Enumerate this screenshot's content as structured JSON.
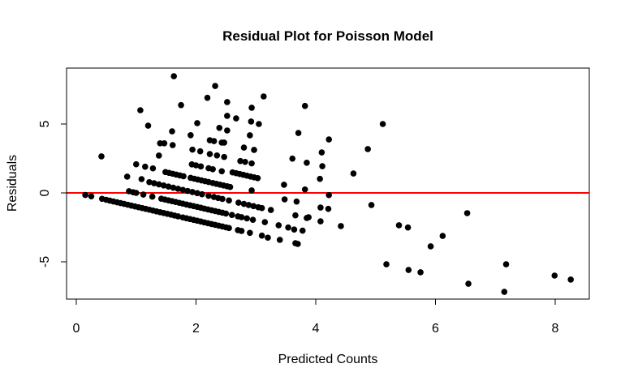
{
  "chart_data": {
    "type": "scatter",
    "title": "Residual Plot for Poisson Model",
    "xlabel": "Predicted Counts",
    "ylabel": "Residuals",
    "xlim": [
      -0.2,
      8.5
    ],
    "ylim": [
      -7.6,
      9.0
    ],
    "xticks": [
      "0",
      "2",
      "4",
      "6",
      "8"
    ],
    "yticks": [
      "-5",
      "0",
      "5"
    ],
    "grid": false,
    "point_color": "#000000",
    "reference_line": {
      "y": 0,
      "color": "#ff0000"
    },
    "points": [
      [
        0.15,
        -0.15
      ],
      [
        0.25,
        -0.25
      ],
      [
        0.43,
        -0.43
      ],
      [
        0.5,
        -0.5
      ],
      [
        0.56,
        -0.56
      ],
      [
        0.62,
        -0.62
      ],
      [
        0.68,
        -0.68
      ],
      [
        0.74,
        -0.74
      ],
      [
        0.8,
        -0.8
      ],
      [
        0.86,
        -0.86
      ],
      [
        0.92,
        -0.92
      ],
      [
        0.98,
        -0.98
      ],
      [
        1.04,
        -1.04
      ],
      [
        1.1,
        -1.1
      ],
      [
        1.16,
        -1.16
      ],
      [
        1.22,
        -1.22
      ],
      [
        1.28,
        -1.28
      ],
      [
        1.34,
        -1.34
      ],
      [
        1.4,
        -1.4
      ],
      [
        1.46,
        -1.46
      ],
      [
        1.52,
        -1.52
      ],
      [
        1.58,
        -1.58
      ],
      [
        1.64,
        -1.64
      ],
      [
        1.7,
        -1.7
      ],
      [
        1.78,
        -1.78
      ],
      [
        1.84,
        -1.84
      ],
      [
        1.9,
        -1.9
      ],
      [
        1.96,
        -1.96
      ],
      [
        2.02,
        -2.02
      ],
      [
        2.08,
        -2.08
      ],
      [
        2.14,
        -2.14
      ],
      [
        2.2,
        -2.2
      ],
      [
        2.26,
        -2.26
      ],
      [
        2.32,
        -2.32
      ],
      [
        2.38,
        -2.38
      ],
      [
        2.44,
        -2.44
      ],
      [
        2.5,
        -2.5
      ],
      [
        2.55,
        -2.55
      ],
      [
        2.7,
        -2.7
      ],
      [
        2.76,
        -2.76
      ],
      [
        2.9,
        -2.9
      ],
      [
        3.1,
        -3.1
      ],
      [
        3.2,
        -3.25
      ],
      [
        3.4,
        -3.41
      ],
      [
        3.66,
        -3.65
      ],
      [
        3.7,
        -3.7
      ],
      [
        3.38,
        -2.35
      ],
      [
        3.54,
        -2.51
      ],
      [
        3.64,
        -2.66
      ],
      [
        3.78,
        -2.74
      ],
      [
        0.88,
        0.12
      ],
      [
        0.95,
        0.05
      ],
      [
        1.0,
        0.0
      ],
      [
        1.12,
        -0.12
      ],
      [
        1.27,
        -0.27
      ],
      [
        1.42,
        -0.42
      ],
      [
        1.48,
        -0.48
      ],
      [
        1.54,
        -0.54
      ],
      [
        1.6,
        -0.6
      ],
      [
        1.66,
        -0.66
      ],
      [
        1.72,
        -0.72
      ],
      [
        1.78,
        -0.78
      ],
      [
        1.84,
        -0.84
      ],
      [
        1.9,
        -0.9
      ],
      [
        1.96,
        -0.96
      ],
      [
        2.02,
        -1.02
      ],
      [
        2.08,
        -1.08
      ],
      [
        2.14,
        -1.14
      ],
      [
        2.2,
        -1.2
      ],
      [
        2.26,
        -1.26
      ],
      [
        2.32,
        -1.32
      ],
      [
        2.38,
        -1.38
      ],
      [
        2.44,
        -1.44
      ],
      [
        2.5,
        -1.5
      ],
      [
        2.6,
        -1.6
      ],
      [
        2.7,
        -1.7
      ],
      [
        2.76,
        -1.76
      ],
      [
        2.85,
        -1.85
      ],
      [
        2.95,
        -1.95
      ],
      [
        3.15,
        -2.12
      ],
      [
        3.66,
        -1.63
      ],
      [
        3.68,
        -0.63
      ],
      [
        3.85,
        -1.82
      ],
      [
        3.48,
        -0.47
      ],
      [
        1.22,
        0.78
      ],
      [
        1.3,
        0.7
      ],
      [
        1.38,
        0.62
      ],
      [
        1.46,
        0.54
      ],
      [
        1.54,
        0.46
      ],
      [
        1.62,
        0.38
      ],
      [
        1.7,
        0.3
      ],
      [
        1.78,
        0.22
      ],
      [
        1.86,
        0.14
      ],
      [
        1.94,
        0.06
      ],
      [
        2.02,
        -0.02
      ],
      [
        2.1,
        -0.1
      ],
      [
        2.21,
        -0.21
      ],
      [
        2.3,
        -0.3
      ],
      [
        2.37,
        -0.37
      ],
      [
        2.44,
        -0.44
      ],
      [
        2.55,
        -0.55
      ],
      [
        2.71,
        -0.71
      ],
      [
        2.8,
        -0.8
      ],
      [
        2.88,
        -0.88
      ],
      [
        2.96,
        -0.96
      ],
      [
        3.04,
        -1.04
      ],
      [
        3.1,
        -1.1
      ],
      [
        3.25,
        -1.24
      ],
      [
        1.49,
        1.51
      ],
      [
        1.55,
        1.45
      ],
      [
        1.61,
        1.39
      ],
      [
        1.67,
        1.33
      ],
      [
        1.73,
        1.27
      ],
      [
        1.79,
        1.21
      ],
      [
        1.91,
        1.09
      ],
      [
        1.97,
        1.03
      ],
      [
        2.03,
        0.97
      ],
      [
        2.09,
        0.91
      ],
      [
        2.15,
        0.85
      ],
      [
        2.21,
        0.79
      ],
      [
        2.28,
        0.72
      ],
      [
        2.34,
        0.66
      ],
      [
        2.4,
        0.6
      ],
      [
        2.46,
        0.54
      ],
      [
        2.52,
        0.48
      ],
      [
        2.57,
        0.43
      ],
      [
        2.93,
        0.18
      ],
      [
        0.85,
        1.18
      ],
      [
        1.09,
        1.0
      ],
      [
        1.0,
        2.08
      ],
      [
        1.15,
        1.9
      ],
      [
        1.28,
        1.78
      ],
      [
        0.42,
        2.65
      ],
      [
        2.61,
        1.49
      ],
      [
        2.67,
        1.43
      ],
      [
        2.73,
        1.37
      ],
      [
        2.79,
        1.31
      ],
      [
        2.85,
        1.25
      ],
      [
        2.91,
        1.19
      ],
      [
        2.97,
        1.13
      ],
      [
        3.03,
        1.07
      ],
      [
        1.93,
        2.07
      ],
      [
        2.0,
        2.0
      ],
      [
        2.08,
        1.92
      ],
      [
        2.21,
        1.79
      ],
      [
        2.28,
        1.72
      ],
      [
        2.43,
        1.57
      ],
      [
        3.47,
        0.59
      ],
      [
        3.82,
        0.25
      ],
      [
        4.07,
        1.02
      ],
      [
        1.38,
        2.71
      ],
      [
        1.94,
        3.14
      ],
      [
        2.07,
        3.02
      ],
      [
        2.23,
        2.82
      ],
      [
        2.35,
        2.72
      ],
      [
        2.47,
        2.61
      ],
      [
        2.74,
        2.31
      ],
      [
        2.82,
        2.25
      ],
      [
        2.93,
        2.14
      ],
      [
        3.61,
        2.49
      ],
      [
        3.85,
        2.19
      ],
      [
        1.4,
        3.6
      ],
      [
        1.47,
        3.6
      ],
      [
        1.61,
        3.47
      ],
      [
        2.23,
        3.82
      ],
      [
        2.3,
        3.76
      ],
      [
        2.43,
        3.65
      ],
      [
        2.47,
        3.65
      ],
      [
        2.8,
        3.29
      ],
      [
        2.97,
        3.12
      ],
      [
        1.63,
        8.47
      ],
      [
        2.32,
        7.76
      ],
      [
        2.19,
        6.9
      ],
      [
        3.13,
        7.0
      ],
      [
        2.52,
        6.59
      ],
      [
        1.75,
        6.37
      ],
      [
        1.07,
        6.0
      ],
      [
        2.93,
        6.18
      ],
      [
        3.82,
        6.31
      ],
      [
        2.52,
        5.59
      ],
      [
        2.67,
        5.41
      ],
      [
        1.2,
        4.88
      ],
      [
        2.02,
        5.06
      ],
      [
        2.92,
        5.18
      ],
      [
        3.05,
        5.0
      ],
      [
        1.6,
        4.47
      ],
      [
        2.39,
        4.72
      ],
      [
        2.52,
        4.53
      ],
      [
        1.91,
        4.19
      ],
      [
        2.9,
        4.18
      ],
      [
        3.71,
        4.35
      ],
      [
        5.12,
        5.0
      ],
      [
        4.22,
        3.88
      ],
      [
        4.1,
        2.94
      ],
      [
        4.87,
        3.18
      ],
      [
        4.11,
        1.94
      ],
      [
        4.63,
        1.41
      ],
      [
        4.22,
        -0.16
      ],
      [
        4.08,
        -1.06
      ],
      [
        4.21,
        -1.16
      ],
      [
        3.88,
        -1.77
      ],
      [
        4.08,
        -2.06
      ],
      [
        4.42,
        -2.41
      ],
      [
        4.93,
        -0.88
      ],
      [
        5.39,
        -2.35
      ],
      [
        5.54,
        -2.51
      ],
      [
        6.12,
        -3.12
      ],
      [
        5.92,
        -3.88
      ],
      [
        6.53,
        -1.47
      ],
      [
        5.18,
        -5.18
      ],
      [
        5.55,
        -5.59
      ],
      [
        5.75,
        -5.76
      ],
      [
        6.55,
        -6.59
      ],
      [
        7.18,
        -5.18
      ],
      [
        7.15,
        -7.18
      ],
      [
        7.99,
        -6.0
      ],
      [
        8.26,
        -6.29
      ]
    ]
  }
}
